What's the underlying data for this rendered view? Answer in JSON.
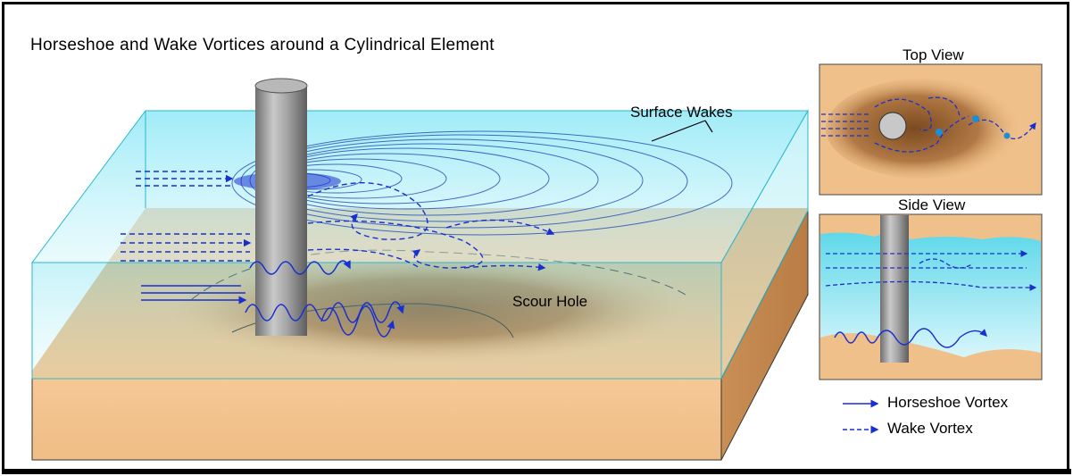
{
  "title": "Horseshoe and Wake Vortices around a Cylindrical Element",
  "labels": {
    "surface_wakes": "Surface Wakes",
    "scour_hole": "Scour Hole",
    "top_view": "Top View",
    "side_view": "Side View"
  },
  "legend": {
    "horseshoe": "Horseshoe Vortex",
    "wake": "Wake Vortex"
  },
  "colors": {
    "water": "#7fe3f0",
    "sand": "#f3c58d",
    "sand_dark": "#a5703a",
    "vortex": "#1a2fd0",
    "cylinder": "#9a9a9a"
  }
}
